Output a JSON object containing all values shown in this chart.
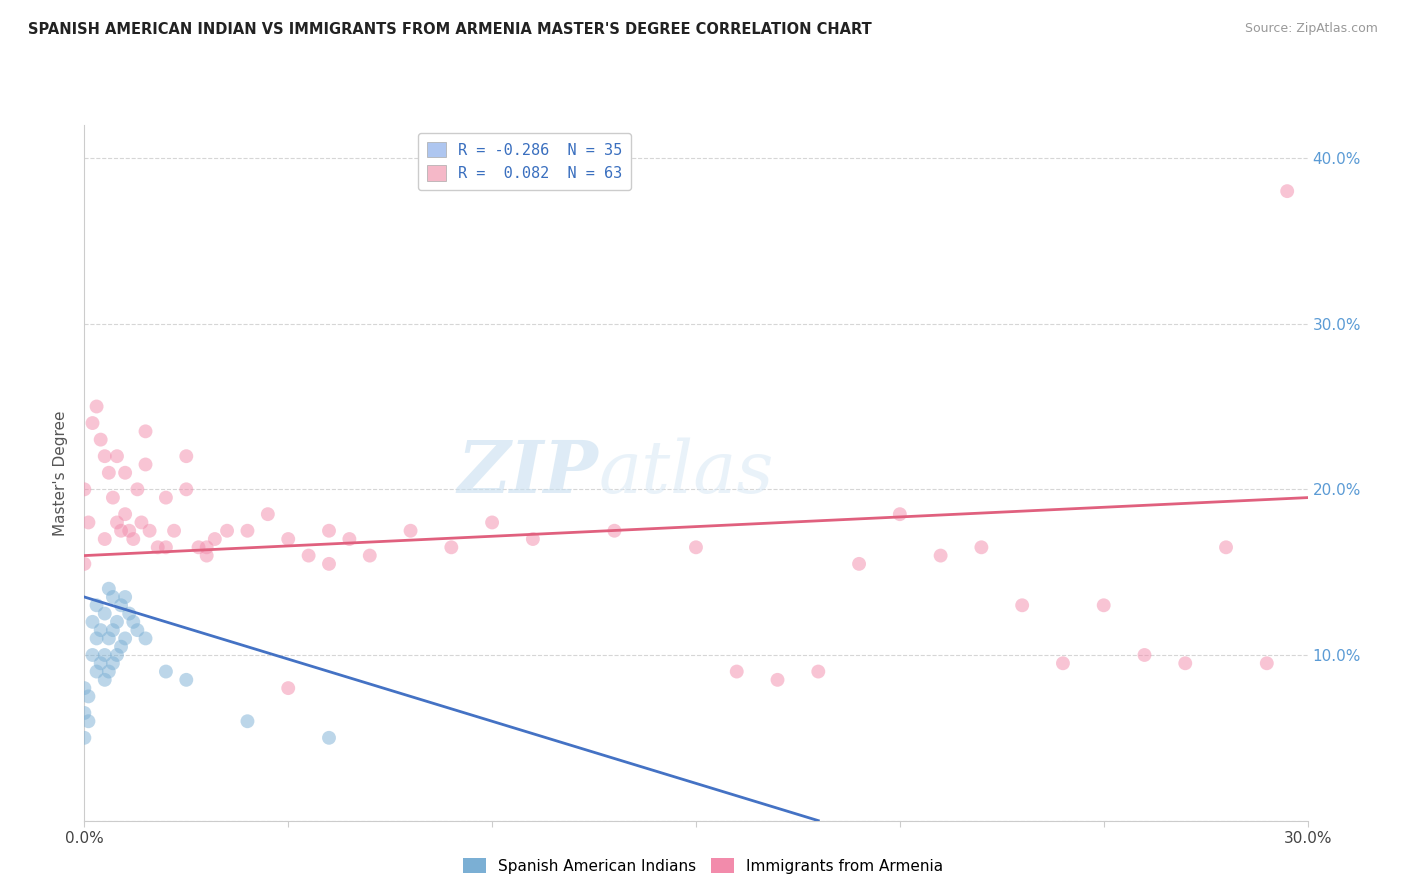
{
  "title": "SPANISH AMERICAN INDIAN VS IMMIGRANTS FROM ARMENIA MASTER'S DEGREE CORRELATION CHART",
  "source": "Source: ZipAtlas.com",
  "ylabel": "Master's Degree",
  "xlim": [
    0.0,
    0.3
  ],
  "ylim": [
    0.0,
    0.42
  ],
  "xticks": [
    0.0,
    0.05,
    0.1,
    0.15,
    0.2,
    0.25,
    0.3
  ],
  "yticks": [
    0.0,
    0.1,
    0.2,
    0.3,
    0.4
  ],
  "legend_entries": [
    {
      "label": "R = -0.286  N = 35",
      "color": "#aec6f0"
    },
    {
      "label": "R =  0.082  N = 63",
      "color": "#f5b8c8"
    }
  ],
  "series1_label": "Spanish American Indians",
  "series2_label": "Immigrants from Armenia",
  "series1_color": "#7bafd4",
  "series2_color": "#f28bab",
  "series1_line_color": "#4472c4",
  "series2_line_color": "#e0607e",
  "watermark_zip": "ZIP",
  "watermark_atlas": "atlas",
  "background_color": "#ffffff",
  "grid_color": "#cccccc",
  "scatter1_x": [
    0.0,
    0.0,
    0.0,
    0.001,
    0.001,
    0.002,
    0.002,
    0.003,
    0.003,
    0.003,
    0.004,
    0.004,
    0.005,
    0.005,
    0.005,
    0.006,
    0.006,
    0.006,
    0.007,
    0.007,
    0.007,
    0.008,
    0.008,
    0.009,
    0.009,
    0.01,
    0.01,
    0.011,
    0.012,
    0.013,
    0.015,
    0.02,
    0.025,
    0.04,
    0.06
  ],
  "scatter1_y": [
    0.05,
    0.065,
    0.08,
    0.06,
    0.075,
    0.1,
    0.12,
    0.09,
    0.11,
    0.13,
    0.095,
    0.115,
    0.085,
    0.1,
    0.125,
    0.09,
    0.11,
    0.14,
    0.095,
    0.115,
    0.135,
    0.1,
    0.12,
    0.105,
    0.13,
    0.11,
    0.135,
    0.125,
    0.12,
    0.115,
    0.11,
    0.09,
    0.085,
    0.06,
    0.05
  ],
  "scatter2_x": [
    0.0,
    0.0,
    0.001,
    0.002,
    0.003,
    0.004,
    0.005,
    0.005,
    0.006,
    0.007,
    0.008,
    0.008,
    0.009,
    0.01,
    0.01,
    0.011,
    0.012,
    0.013,
    0.014,
    0.015,
    0.015,
    0.016,
    0.018,
    0.02,
    0.022,
    0.025,
    0.025,
    0.028,
    0.03,
    0.032,
    0.035,
    0.04,
    0.045,
    0.05,
    0.055,
    0.06,
    0.06,
    0.065,
    0.07,
    0.08,
    0.09,
    0.1,
    0.11,
    0.13,
    0.15,
    0.16,
    0.17,
    0.18,
    0.19,
    0.2,
    0.21,
    0.22,
    0.23,
    0.24,
    0.25,
    0.26,
    0.27,
    0.28,
    0.29,
    0.295,
    0.02,
    0.03,
    0.05
  ],
  "scatter2_y": [
    0.155,
    0.2,
    0.18,
    0.24,
    0.25,
    0.23,
    0.17,
    0.22,
    0.21,
    0.195,
    0.18,
    0.22,
    0.175,
    0.185,
    0.21,
    0.175,
    0.17,
    0.2,
    0.18,
    0.215,
    0.235,
    0.175,
    0.165,
    0.195,
    0.175,
    0.2,
    0.22,
    0.165,
    0.165,
    0.17,
    0.175,
    0.175,
    0.185,
    0.17,
    0.16,
    0.175,
    0.155,
    0.17,
    0.16,
    0.175,
    0.165,
    0.18,
    0.17,
    0.175,
    0.165,
    0.09,
    0.085,
    0.09,
    0.155,
    0.185,
    0.16,
    0.165,
    0.13,
    0.095,
    0.13,
    0.1,
    0.095,
    0.165,
    0.095,
    0.38,
    0.165,
    0.16,
    0.08
  ],
  "line1_x0": 0.0,
  "line1_y0": 0.135,
  "line1_x1": 0.18,
  "line1_y1": 0.0,
  "line2_x0": 0.0,
  "line2_y0": 0.16,
  "line2_x1": 0.3,
  "line2_y1": 0.195
}
